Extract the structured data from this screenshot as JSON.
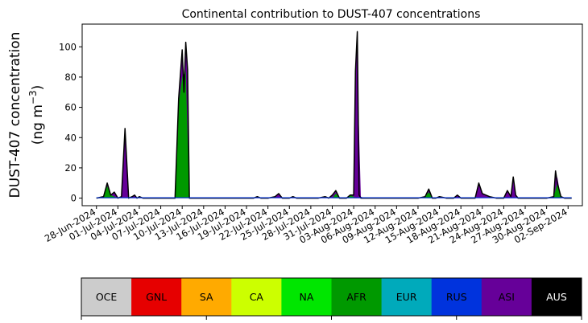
{
  "chart_data": {
    "type": "area",
    "title": "Continental contribution to DUST-407 concentrations",
    "ylabel_line1": "DUST-407 concentration",
    "ylabel_line2": "(ng m",
    "ylabel_unit_sup": "−3",
    "ylabel_close": ")",
    "xlabel": "",
    "ylim": [
      -5,
      115
    ],
    "yticks": [
      0,
      20,
      40,
      60,
      80,
      100
    ],
    "x_range": [
      "2024-06-26",
      "2024-09-04"
    ],
    "x_ticks": [
      "28-Jun-2024",
      "01-Jul-2024",
      "04-Jul-2024",
      "07-Jul-2024",
      "10-Jul-2024",
      "13-Jul-2024",
      "16-Jul-2024",
      "19-Jul-2024",
      "22-Jul-2024",
      "25-Jul-2024",
      "28-Jul-2024",
      "31-Jul-2024",
      "03-Aug-2024",
      "06-Aug-2024",
      "09-Aug-2024",
      "12-Aug-2024",
      "15-Aug-2024",
      "18-Aug-2024",
      "21-Aug-2024",
      "24-Aug-2024",
      "27-Aug-2024",
      "30-Aug-2024",
      "02-Sep-2024"
    ],
    "grid": false,
    "legend_position": "bottom",
    "legend": [
      {
        "code": "OCE",
        "color": "#cccccc",
        "text_color": "#000000"
      },
      {
        "code": "GNL",
        "color": "#e60000",
        "text_color": "#000000"
      },
      {
        "code": "SA",
        "color": "#ffaa00",
        "text_color": "#000000"
      },
      {
        "code": "CA",
        "color": "#ccff00",
        "text_color": "#000000"
      },
      {
        "code": "NA",
        "color": "#00e600",
        "text_color": "#000000"
      },
      {
        "code": "AFR",
        "color": "#009900",
        "text_color": "#000000"
      },
      {
        "code": "EUR",
        "color": "#00aabb",
        "text_color": "#000000"
      },
      {
        "code": "RUS",
        "color": "#0033dd",
        "text_color": "#000000"
      },
      {
        "code": "ASI",
        "color": "#660099",
        "text_color": "#000000"
      },
      {
        "code": "AUS",
        "color": "#000000",
        "text_color": "#ffffff"
      }
    ],
    "total": {
      "x": [
        "2024-06-28",
        "2024-06-29",
        "2024-06-29T12",
        "2024-06-30",
        "2024-06-30T12",
        "2024-07-01",
        "2024-07-01T12",
        "2024-07-02",
        "2024-07-02T12",
        "2024-07-03",
        "2024-07-03T08",
        "2024-07-03T16",
        "2024-07-04",
        "2024-07-04T12",
        "2024-07-05",
        "2024-07-05T12",
        "2024-07-06",
        "2024-07-07",
        "2024-07-08",
        "2024-07-09",
        "2024-07-09T12",
        "2024-07-10",
        "2024-07-10T06",
        "2024-07-10T12",
        "2024-07-10T18",
        "2024-07-11",
        "2024-07-11T06",
        "2024-07-11T12",
        "2024-07-11T18",
        "2024-07-12",
        "2024-07-12T12",
        "2024-07-13",
        "2024-07-16",
        "2024-07-20",
        "2024-07-20T12",
        "2024-07-21",
        "2024-07-22",
        "2024-07-23",
        "2024-07-23T12",
        "2024-07-24",
        "2024-07-25",
        "2024-07-25T12",
        "2024-07-26",
        "2024-07-27",
        "2024-07-29",
        "2024-07-30",
        "2024-07-30T12",
        "2024-07-31",
        "2024-07-31T12",
        "2024-08-01",
        "2024-08-02",
        "2024-08-02T12",
        "2024-08-03",
        "2024-08-03T06",
        "2024-08-03T12",
        "2024-08-03T18",
        "2024-08-04",
        "2024-08-04T12",
        "2024-08-05",
        "2024-08-06",
        "2024-08-08",
        "2024-08-10",
        "2024-08-12",
        "2024-08-13",
        "2024-08-13T12",
        "2024-08-14",
        "2024-08-14T12",
        "2024-08-15",
        "2024-08-16",
        "2024-08-17",
        "2024-08-17T12",
        "2024-08-18",
        "2024-08-19",
        "2024-08-20",
        "2024-08-20T12",
        "2024-08-21",
        "2024-08-21T12",
        "2024-08-22",
        "2024-08-23",
        "2024-08-24",
        "2024-08-24T12",
        "2024-08-25",
        "2024-08-25T08",
        "2024-08-25T16",
        "2024-08-26",
        "2024-08-27",
        "2024-08-29",
        "2024-08-30",
        "2024-08-31",
        "2024-08-31T06",
        "2024-08-31T12",
        "2024-09-01",
        "2024-09-01T12",
        "2024-09-02",
        "2024-09-02T12"
      ],
      "y": [
        0,
        1,
        10,
        2,
        4,
        0,
        1,
        46,
        0,
        1,
        2,
        0,
        1,
        0,
        0,
        0,
        0,
        0,
        0,
        0,
        66,
        98,
        70,
        103,
        85,
        0,
        0,
        0,
        0,
        0,
        0,
        0,
        0,
        0,
        1,
        0,
        0,
        1,
        3,
        0,
        0,
        1,
        0,
        0,
        0,
        1,
        0,
        2,
        5,
        0,
        0,
        2,
        2,
        84,
        110,
        2,
        0,
        0,
        0,
        0,
        0,
        0,
        0,
        1,
        6,
        0,
        0,
        1,
        0,
        0,
        2,
        0,
        0,
        0,
        10,
        3,
        2,
        1,
        0,
        0,
        5,
        1,
        14,
        2,
        0,
        0,
        0,
        0,
        1,
        18,
        10,
        1,
        0,
        0,
        0
      ]
    },
    "afr": {
      "x": [
        "2024-06-28",
        "2024-06-29",
        "2024-06-29T12",
        "2024-06-30",
        "2024-07-01",
        "2024-07-02",
        "2024-07-03",
        "2024-07-09",
        "2024-07-09T12",
        "2024-07-10",
        "2024-07-10T12",
        "2024-07-11",
        "2024-07-12",
        "2024-07-31",
        "2024-07-31T12",
        "2024-08-01",
        "2024-08-02",
        "2024-08-02T12",
        "2024-08-03",
        "2024-08-03T12",
        "2024-08-04",
        "2024-08-12",
        "2024-08-13",
        "2024-08-13T12",
        "2024-08-14",
        "2024-08-30",
        "2024-08-31",
        "2024-08-31T12",
        "2024-09-01",
        "2024-09-02T12"
      ],
      "y": [
        0,
        1,
        8,
        2,
        0,
        0,
        0,
        0,
        62,
        80,
        84,
        0,
        0,
        0,
        3,
        0,
        0,
        2,
        1,
        0,
        0,
        0,
        1,
        4,
        0,
        0,
        1,
        10,
        0,
        0
      ]
    },
    "asi": {
      "x": [
        "2024-08-02",
        "2024-08-02T12",
        "2024-08-03",
        "2024-08-03T12",
        "2024-08-04",
        "2024-08-04T12",
        "2024-08-16",
        "2024-08-17",
        "2024-08-17T12",
        "2024-08-18",
        "2024-08-19",
        "2024-08-24",
        "2024-08-24T12",
        "2024-08-25",
        "2024-08-25T08",
        "2024-08-25T16",
        "2024-08-26",
        "2024-08-30",
        "2024-08-31",
        "2024-08-31T12",
        "2024-09-01"
      ],
      "y": [
        0,
        0,
        0,
        85,
        1,
        0,
        0,
        0,
        2,
        0,
        0,
        0,
        3,
        1,
        10,
        1,
        0,
        0,
        1,
        14,
        0
      ]
    }
  }
}
